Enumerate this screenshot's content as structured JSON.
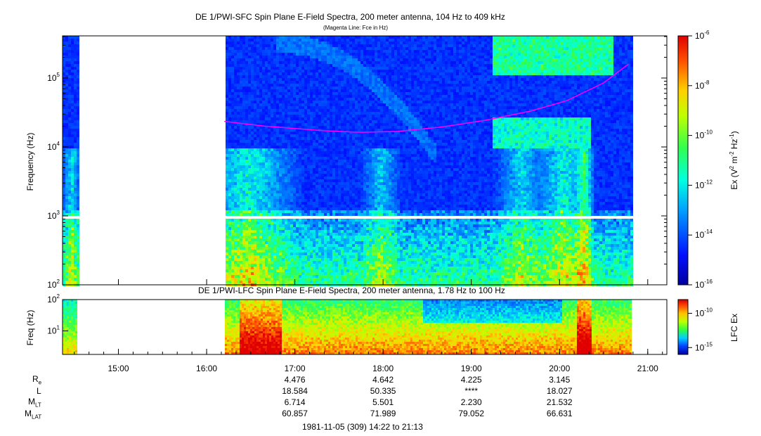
{
  "chart_data": [
    {
      "type": "heatmap",
      "title": "DE 1/PWI-SFC  Spin Plane E-Field Spectra, 200 meter antenna, 104 Hz to 409 kHz",
      "subtitle": "(Magenta Line: Fce in Hz)",
      "ylabel": "Frequency (Hz)",
      "yscale": "log",
      "ylim": [
        100,
        409000
      ],
      "yticks": [
        "10^2",
        "10^3",
        "10^4",
        "10^5"
      ],
      "colorbar": {
        "label": "Ex (V^2 m^-2 Hz^-1)",
        "scale": "log",
        "range": [
          1e-16,
          1e-06
        ],
        "ticks": [
          "10^-6",
          "10^-8",
          "10^-10",
          "10^-12",
          "10^-14",
          "10^-16"
        ]
      },
      "data_gap_time": [
        "14:32",
        "16:12"
      ],
      "fce_line": {
        "name": "Fce",
        "color": "#ff00ff",
        "points": [
          [
            "16:12",
            23500
          ],
          [
            "16:40",
            20000
          ],
          [
            "17:20",
            17200
          ],
          [
            "17:45",
            16300
          ],
          [
            "18:10",
            16800
          ],
          [
            "18:40",
            19500
          ],
          [
            "19:10",
            24500
          ],
          [
            "19:40",
            33000
          ],
          [
            "20:05",
            47000
          ],
          [
            "20:30",
            85000
          ],
          [
            "20:47",
            160000
          ]
        ]
      }
    },
    {
      "type": "heatmap",
      "title": "DE 1/PWI-LFC  Spin Plane E-Field Spectra, 200 meter antenna, 1.78 Hz to 100 Hz",
      "ylabel": "Freq (Hz)",
      "yscale": "log",
      "ylim": [
        1.78,
        100
      ],
      "yticks": [
        "10^1",
        "10^2"
      ],
      "colorbar": {
        "label": "LFC Ex",
        "scale": "log",
        "range": [
          1e-16,
          1e-08
        ],
        "ticks": [
          "10^-10",
          "10^-15"
        ]
      }
    }
  ],
  "titles": {
    "main": "DE 1/PWI-SFC  Spin Plane E-Field Spectra, 200 meter antenna, 104 Hz to 409 kHz",
    "sub": "(Magenta Line: Fce in Hz)",
    "lfc": "DE 1/PWI-LFC  Spin Plane E-Field Spectra, 200 meter antenna, 1.78 Hz to 100 Hz"
  },
  "axes": {
    "sfc_ylabel": "Frequency (Hz)",
    "lfc_ylabel": "Freq (Hz)",
    "sfc_cb_label": "Ex (V",
    "lfc_cb_label": "LFC Ex",
    "time_range": [
      "14:22",
      "21:13"
    ],
    "xticks": [
      "15:00",
      "16:00",
      "17:00",
      "18:00",
      "19:00",
      "20:00",
      "21:00"
    ]
  },
  "ephemeris": {
    "labels": [
      "R",
      "L",
      "M",
      "M"
    ],
    "label_subs": [
      "e",
      "",
      "LT",
      "LAT"
    ],
    "rows": [
      [
        "4.476",
        "4.642",
        "4.225",
        "3.145"
      ],
      [
        "18.584",
        "50.335",
        "****",
        "18.027"
      ],
      [
        "6.714",
        "5.501",
        "2.230",
        "21.532"
      ],
      [
        "60.857",
        "71.989",
        "79.052",
        "66.631"
      ]
    ]
  },
  "footer": "1981-11-05 (309) 14:22 to 21:13",
  "colors": {
    "fce_line": "#ff00ff",
    "background_blue": "#0a1fd0",
    "gap": "#ffffff"
  }
}
